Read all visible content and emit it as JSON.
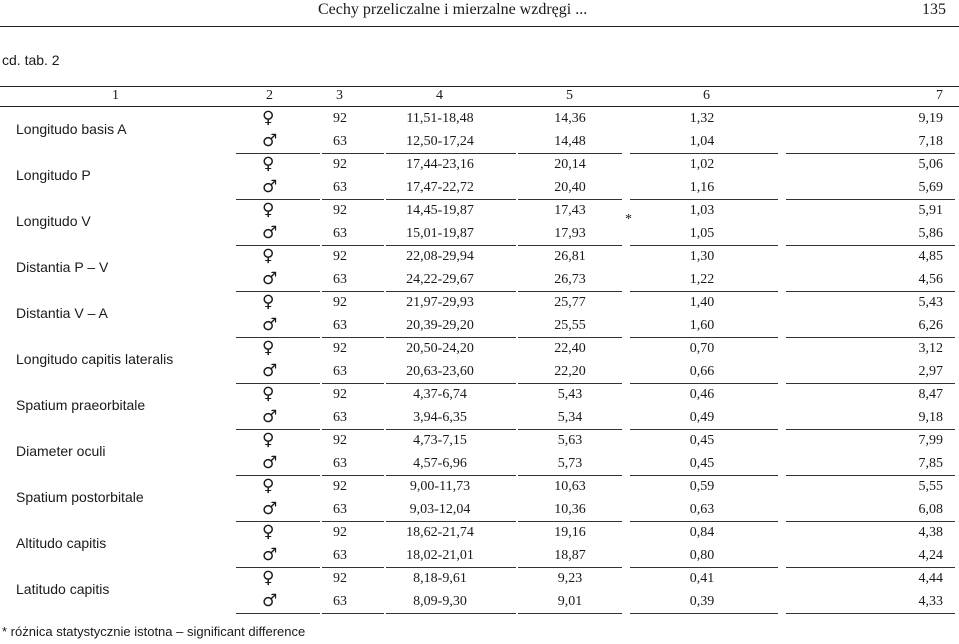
{
  "header": {
    "title": "Cechy przeliczalne i mierzalne wzdręgi ...",
    "page": "135"
  },
  "caption": "cd. tab. 2",
  "columns": [
    "1",
    "2",
    "3",
    "4",
    "5",
    "6",
    "7"
  ],
  "female_symbol": "♀",
  "male_symbol": "♂",
  "asterisk": "*",
  "rows": [
    {
      "name": "Longitudo basis A",
      "f": [
        "92",
        "11,51-18,48",
        "14,36",
        "1,32",
        "9,19"
      ],
      "m": [
        "63",
        "12,50-17,24",
        "14,48",
        "1,04",
        "7,18"
      ]
    },
    {
      "name": "Longitudo P",
      "f": [
        "92",
        "17,44-23,16",
        "20,14",
        "1,02",
        "5,06"
      ],
      "m": [
        "63",
        "17,47-22,72",
        "20,40",
        "1,16",
        "5,69"
      ]
    },
    {
      "name": "Longitudo V",
      "f": [
        "92",
        "14,45-19,87",
        "17,43",
        "1,03",
        "5,91"
      ],
      "m": [
        "63",
        "15,01-19,87",
        "17,93",
        "1,05",
        "5,86"
      ]
    },
    {
      "name": "Distantia P – V",
      "f": [
        "92",
        "22,08-29,94",
        "26,81",
        "1,30",
        "4,85"
      ],
      "m": [
        "63",
        "24,22-29,67",
        "26,73",
        "1,22",
        "4,56"
      ]
    },
    {
      "name": "Distantia V – A",
      "f": [
        "92",
        "21,97-29,93",
        "25,77",
        "1,40",
        "5,43"
      ],
      "m": [
        "63",
        "20,39-29,20",
        "25,55",
        "1,60",
        "6,26"
      ]
    },
    {
      "name": "Longitudo capitis lateralis",
      "f": [
        "92",
        "20,50-24,20",
        "22,40",
        "0,70",
        "3,12"
      ],
      "m": [
        "63",
        "20,63-23,60",
        "22,20",
        "0,66",
        "2,97"
      ]
    },
    {
      "name": "Spatium praeorbitale",
      "f": [
        "92",
        "4,37-6,74",
        "5,43",
        "0,46",
        "8,47"
      ],
      "m": [
        "63",
        "3,94-6,35",
        "5,34",
        "0,49",
        "9,18"
      ]
    },
    {
      "name": "Diameter oculi",
      "f": [
        "92",
        "4,73-7,15",
        "5,63",
        "0,45",
        "7,99"
      ],
      "m": [
        "63",
        "4,57-6,96",
        "5,73",
        "0,45",
        "7,85"
      ]
    },
    {
      "name": "Spatium postorbitale",
      "f": [
        "92",
        "9,00-11,73",
        "10,63",
        "0,59",
        "5,55"
      ],
      "m": [
        "63",
        "9,03-12,04",
        "10,36",
        "0,63",
        "6,08"
      ]
    },
    {
      "name": "Altitudo capitis",
      "f": [
        "92",
        "18,62-21,74",
        "19,16",
        "0,84",
        "4,38"
      ],
      "m": [
        "63",
        "18,02-21,01",
        "18,87",
        "0,80",
        "4,24"
      ]
    },
    {
      "name": "Latitudo capitis",
      "f": [
        "92",
        "8,18-9,61",
        "9,23",
        "0,41",
        "4,44"
      ],
      "m": [
        "63",
        "8,09-9,30",
        "9,01",
        "0,39",
        "4,33"
      ]
    }
  ],
  "footnote": "* różnica statystycznie istotna – significant difference"
}
